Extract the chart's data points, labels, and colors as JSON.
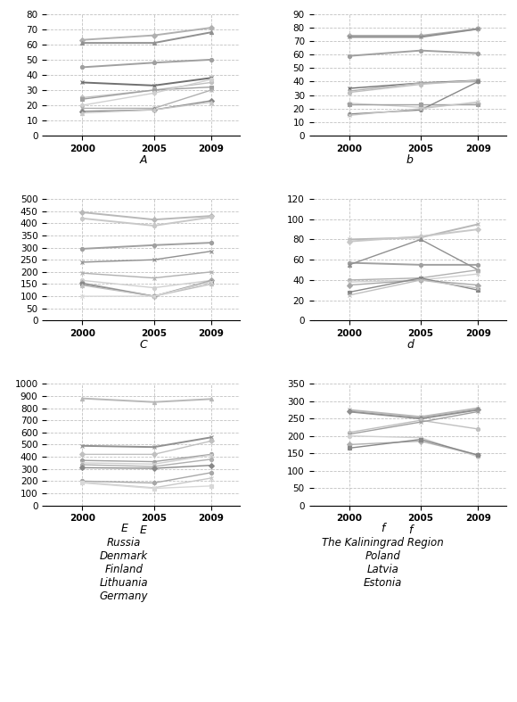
{
  "years": [
    2000,
    2005,
    2009
  ],
  "panel_A": {
    "label": "A",
    "ylim": [
      0,
      80
    ],
    "yticks": [
      0,
      10,
      20,
      30,
      40,
      50,
      60,
      70,
      80
    ],
    "series": [
      {
        "values": [
          63,
          66,
          71
        ],
        "color": "#b0b0b0",
        "marker": "D",
        "lw": 1.4
      },
      {
        "values": [
          61,
          61,
          68
        ],
        "color": "#909090",
        "marker": "^",
        "lw": 1.4
      },
      {
        "values": [
          45,
          48,
          50
        ],
        "color": "#a0a0a0",
        "marker": "o",
        "lw": 1.4
      },
      {
        "values": [
          35,
          33,
          38
        ],
        "color": "#707070",
        "marker": "x",
        "lw": 1.4
      },
      {
        "values": [
          25,
          30,
          35
        ],
        "color": "#c0c0c0",
        "marker": "o",
        "lw": 1.0
      },
      {
        "values": [
          24,
          30,
          32
        ],
        "color": "#a0a0a0",
        "marker": "s",
        "lw": 1.0
      },
      {
        "values": [
          20,
          28,
          37
        ],
        "color": "#d0d0d0",
        "marker": "o",
        "lw": 1.0
      },
      {
        "values": [
          18,
          18,
          30
        ],
        "color": "#b0b0b0",
        "marker": "x",
        "lw": 1.0
      },
      {
        "values": [
          16,
          17,
          23
        ],
        "color": "#888888",
        "marker": "D",
        "lw": 1.0
      },
      {
        "values": [
          15,
          17,
          22
        ],
        "color": "#c8c8c8",
        "marker": "^",
        "lw": 1.0
      }
    ]
  },
  "panel_B": {
    "label": "b",
    "ylim": [
      0,
      90
    ],
    "yticks": [
      0,
      10,
      20,
      30,
      40,
      50,
      60,
      70,
      80,
      90
    ],
    "series": [
      {
        "values": [
          74,
          74,
          79
        ],
        "color": "#b0b0b0",
        "marker": "D",
        "lw": 1.4
      },
      {
        "values": [
          73,
          73,
          79
        ],
        "color": "#909090",
        "marker": "x",
        "lw": 1.4
      },
      {
        "values": [
          59,
          63,
          61
        ],
        "color": "#a0a0a0",
        "marker": "o",
        "lw": 1.4
      },
      {
        "values": [
          35,
          39,
          41
        ],
        "color": "#707070",
        "marker": "x",
        "lw": 1.0
      },
      {
        "values": [
          33,
          39,
          40
        ],
        "color": "#b0b0b0",
        "marker": "^",
        "lw": 1.0
      },
      {
        "values": [
          32,
          38,
          41
        ],
        "color": "#c0c0c0",
        "marker": "o",
        "lw": 1.0
      },
      {
        "values": [
          24,
          21,
          24
        ],
        "color": "#d0d0d0",
        "marker": "D",
        "lw": 1.0
      },
      {
        "values": [
          23,
          23,
          23
        ],
        "color": "#a0a0a0",
        "marker": "s",
        "lw": 1.0
      },
      {
        "values": [
          16,
          19,
          40
        ],
        "color": "#888888",
        "marker": "o",
        "lw": 1.0
      },
      {
        "values": [
          15,
          20,
          25
        ],
        "color": "#c8c8c8",
        "marker": "x",
        "lw": 1.0
      }
    ]
  },
  "panel_C": {
    "label": "C",
    "ylim": [
      0,
      500
    ],
    "yticks": [
      0,
      50,
      100,
      150,
      200,
      250,
      300,
      350,
      400,
      450,
      500
    ],
    "series": [
      {
        "values": [
          445,
          415,
          430
        ],
        "color": "#b8b8b8",
        "marker": "D",
        "lw": 1.4
      },
      {
        "values": [
          420,
          390,
          425
        ],
        "color": "#c8c8c8",
        "marker": "o",
        "lw": 1.4
      },
      {
        "values": [
          295,
          310,
          320
        ],
        "color": "#a0a0a0",
        "marker": "o",
        "lw": 1.4
      },
      {
        "values": [
          240,
          250,
          285
        ],
        "color": "#909090",
        "marker": "x",
        "lw": 1.0
      },
      {
        "values": [
          195,
          175,
          200
        ],
        "color": "#b0b0b0",
        "marker": "x",
        "lw": 1.0
      },
      {
        "values": [
          165,
          135,
          165
        ],
        "color": "#d0d0d0",
        "marker": "o",
        "lw": 1.0
      },
      {
        "values": [
          155,
          100,
          165
        ],
        "color": "#a8a8a8",
        "marker": "D",
        "lw": 1.0
      },
      {
        "values": [
          150,
          100,
          160
        ],
        "color": "#888888",
        "marker": "s",
        "lw": 1.0
      },
      {
        "values": [
          145,
          100,
          150
        ],
        "color": "#c0c0c0",
        "marker": "^",
        "lw": 1.0
      },
      {
        "values": [
          100,
          100,
          160
        ],
        "color": "#d8d8d8",
        "marker": "x",
        "lw": 1.0
      }
    ]
  },
  "panel_D": {
    "label": "d",
    "ylim": [
      0,
      120
    ],
    "yticks": [
      0,
      20,
      40,
      60,
      80,
      100,
      120
    ],
    "series": [
      {
        "values": [
          80,
          82,
          95
        ],
        "color": "#b8b8b8",
        "marker": "x",
        "lw": 1.4
      },
      {
        "values": [
          78,
          83,
          90
        ],
        "color": "#c8c8c8",
        "marker": "D",
        "lw": 1.4
      },
      {
        "values": [
          57,
          55,
          55
        ],
        "color": "#a0a0a0",
        "marker": "o",
        "lw": 1.4
      },
      {
        "values": [
          55,
          80,
          50
        ],
        "color": "#909090",
        "marker": "^",
        "lw": 1.0
      },
      {
        "values": [
          40,
          42,
          50
        ],
        "color": "#b0b0b0",
        "marker": "o",
        "lw": 1.0
      },
      {
        "values": [
          38,
          40,
          46
        ],
        "color": "#d0d0d0",
        "marker": "x",
        "lw": 1.0
      },
      {
        "values": [
          35,
          40,
          35
        ],
        "color": "#a8a8a8",
        "marker": "D",
        "lw": 1.0
      },
      {
        "values": [
          28,
          42,
          30
        ],
        "color": "#888888",
        "marker": "s",
        "lw": 1.0
      },
      {
        "values": [
          25,
          40,
          32
        ],
        "color": "#c0c0c0",
        "marker": "x",
        "lw": 1.0
      }
    ]
  },
  "panel_E": {
    "label": "E",
    "ylim": [
      0,
      1000
    ],
    "yticks": [
      0,
      100,
      200,
      300,
      400,
      500,
      600,
      700,
      800,
      900,
      1000
    ],
    "series": [
      {
        "values": [
          880,
          850,
          875
        ],
        "color": "#b8b8b8",
        "marker": "^",
        "lw": 1.4
      },
      {
        "values": [
          490,
          480,
          560
        ],
        "color": "#909090",
        "marker": "x",
        "lw": 1.4
      },
      {
        "values": [
          420,
          420,
          530
        ],
        "color": "#c0c0c0",
        "marker": "D",
        "lw": 1.0
      },
      {
        "values": [
          370,
          360,
          420
        ],
        "color": "#a0a0a0",
        "marker": "o",
        "lw": 1.0
      },
      {
        "values": [
          350,
          340,
          415
        ],
        "color": "#d0d0d0",
        "marker": "x",
        "lw": 1.0
      },
      {
        "values": [
          335,
          320,
          380
        ],
        "color": "#b0b0b0",
        "marker": "o",
        "lw": 1.0
      },
      {
        "values": [
          310,
          305,
          330
        ],
        "color": "#888888",
        "marker": "D",
        "lw": 1.0
      },
      {
        "values": [
          200,
          185,
          270
        ],
        "color": "#a8a8a8",
        "marker": "o",
        "lw": 1.0
      },
      {
        "values": [
          190,
          145,
          225
        ],
        "color": "#c8c8c8",
        "marker": "x",
        "lw": 1.0
      },
      {
        "values": [
          185,
          140,
          160
        ],
        "color": "#d8d8d8",
        "marker": "s",
        "lw": 1.0
      }
    ]
  },
  "panel_F": {
    "label": "f",
    "ylim": [
      0,
      350
    ],
    "yticks": [
      0,
      50,
      100,
      150,
      200,
      250,
      300,
      350
    ],
    "series": [
      {
        "values": [
          275,
          255,
          280
        ],
        "color": "#b8b8b8",
        "marker": "x",
        "lw": 1.4
      },
      {
        "values": [
          270,
          250,
          275
        ],
        "color": "#909090",
        "marker": "D",
        "lw": 1.4
      },
      {
        "values": [
          210,
          245,
          220
        ],
        "color": "#c0c0c0",
        "marker": "o",
        "lw": 1.0
      },
      {
        "values": [
          205,
          240,
          270
        ],
        "color": "#a0a0a0",
        "marker": "x",
        "lw": 1.0
      },
      {
        "values": [
          200,
          195,
          140
        ],
        "color": "#d0d0d0",
        "marker": "o",
        "lw": 1.0
      },
      {
        "values": [
          175,
          185,
          145
        ],
        "color": "#b0b0b0",
        "marker": "D",
        "lw": 1.0
      },
      {
        "values": [
          165,
          190,
          145
        ],
        "color": "#888888",
        "marker": "s",
        "lw": 1.0
      }
    ]
  },
  "legend_left": [
    "Russia",
    "Denmark",
    "Finland",
    "Lithuania",
    "Germany"
  ],
  "legend_right": [
    "The Kaliningrad Region",
    "Poland",
    "Latvia",
    "Estonia"
  ],
  "background_color": "#ffffff",
  "grid_color": "#bbbbbb",
  "label_fontsize": 9,
  "tick_fontsize": 7.5
}
